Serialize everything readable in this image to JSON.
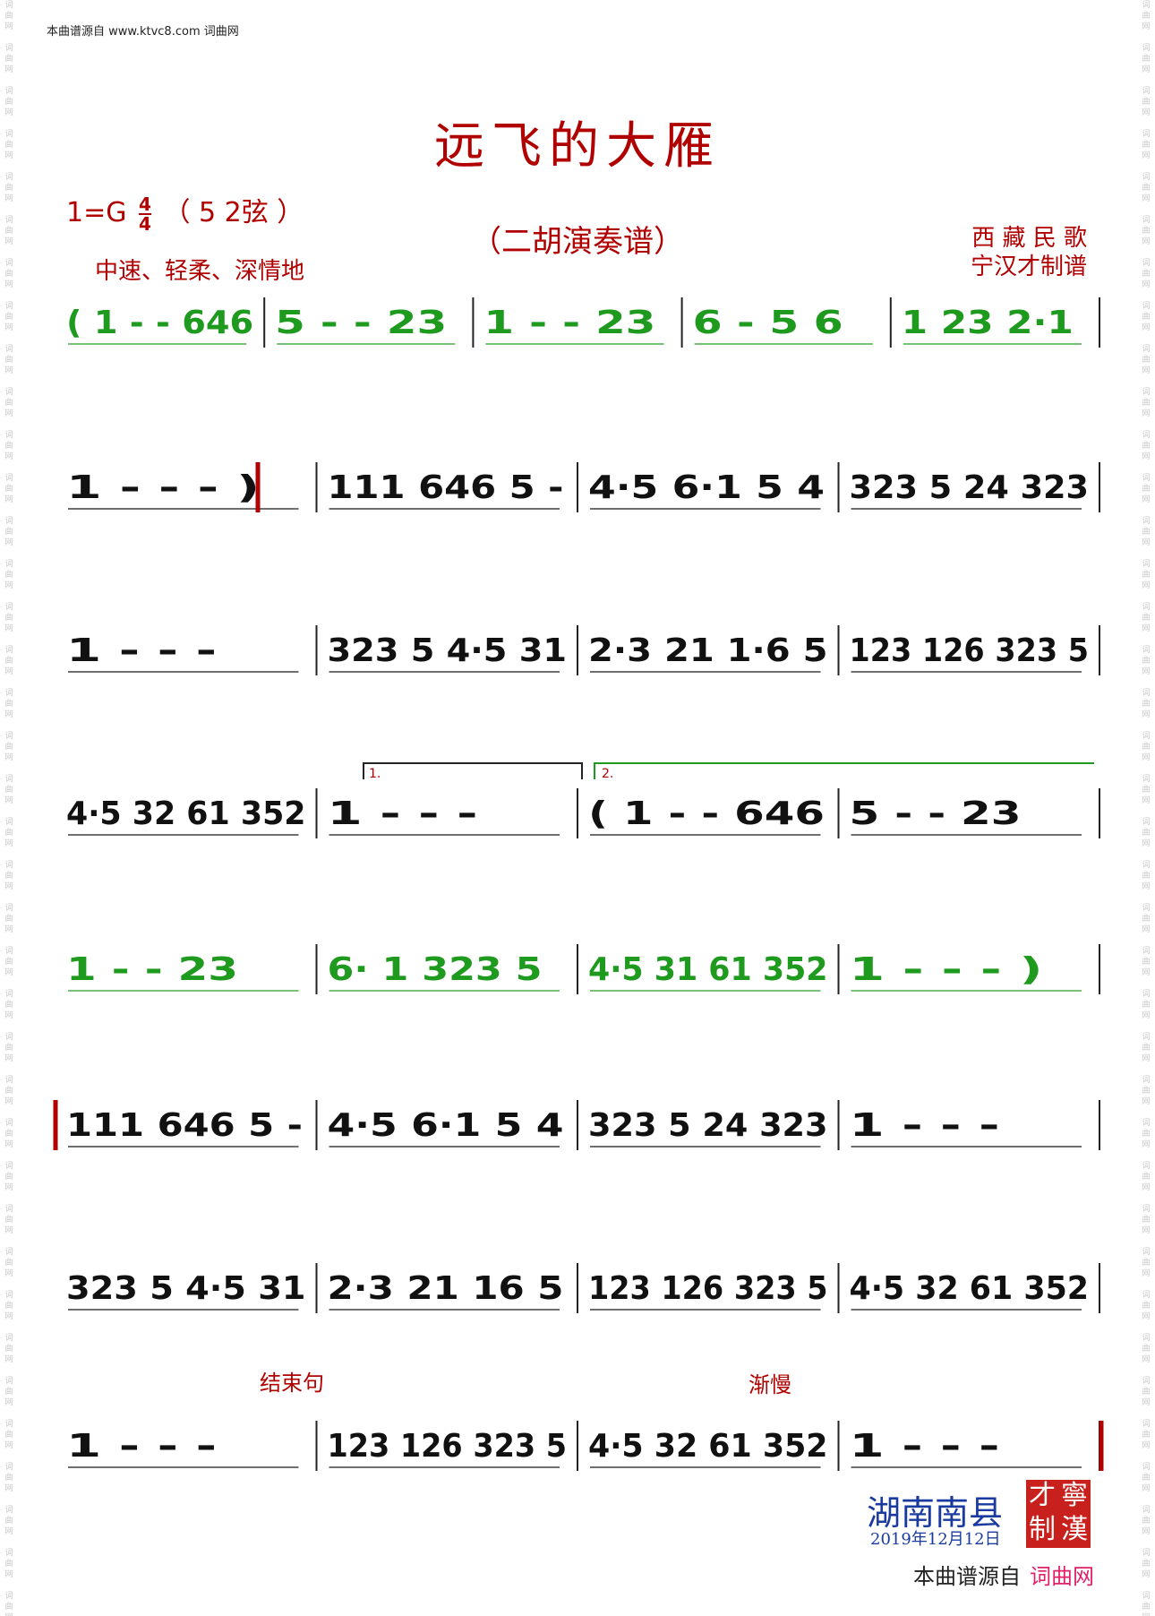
{
  "source_note": "本曲谱源自 www.ktvc8.com 词曲网",
  "title": "远飞的大雁",
  "key_signature": {
    "key": "1=G",
    "time_top": "4",
    "time_bottom": "4",
    "strings": "（ 5 2弦 ）"
  },
  "subtitle": "（二胡演奏谱）",
  "tempo_marking": "中速、轻柔、深情地",
  "origin": "西 藏 民 歌",
  "arranger": "宁汉才制谱",
  "marks": {
    "ending_phrase": "结束句",
    "slowing": "渐慢",
    "volta1": "1.",
    "volta2": "2."
  },
  "place": "湖南南县",
  "date": "2019年12月12日",
  "seal": [
    "寧",
    "才",
    "漢",
    "制"
  ],
  "footer_prefix": "本曲谱源自",
  "footer_site": "词曲网",
  "watermark": "词曲网",
  "colors": {
    "green": "#1e9a1e",
    "black": "#111111",
    "red": "#b00000",
    "blue": "#1a3aa0"
  },
  "lines": [
    {
      "color": "green",
      "measures": [
        "( 1 - - 646",
        "5 - - 23",
        "1 - - 23",
        "6 - 5 6",
        "1 23 2·1"
      ]
    },
    {
      "measures": [
        "1 - - - )",
        "111 646 5 -",
        "4·5 6·1 5 4",
        "323 5 24 323"
      ]
    },
    {
      "measures": [
        "1 - - -",
        "323 5 4·5 31",
        "2·3 21 1·6 5",
        "123 126 323 5"
      ]
    },
    {
      "measures": [
        "4·5 32 61 352",
        "1 - - -",
        "( 1 - - 646",
        "5 - - 23"
      ]
    },
    {
      "color": "green",
      "measures": [
        "1 - - 23",
        "6· 1 323 5",
        "4·5 31 61 352",
        "1 - - - )"
      ]
    },
    {
      "measures": [
        "111 646 5 -",
        "4·5 6·1 5 4",
        "323 5 24 323",
        "1 - - -"
      ]
    },
    {
      "measures": [
        "323 5 4·5 31",
        "2·3 21 16 5",
        "123 126 323 5",
        "4·5 32 61 352"
      ]
    },
    {
      "measures": [
        "1 - - -",
        "123 126 323 5",
        "4·5 32 61 352",
        "1 - - -"
      ]
    }
  ]
}
